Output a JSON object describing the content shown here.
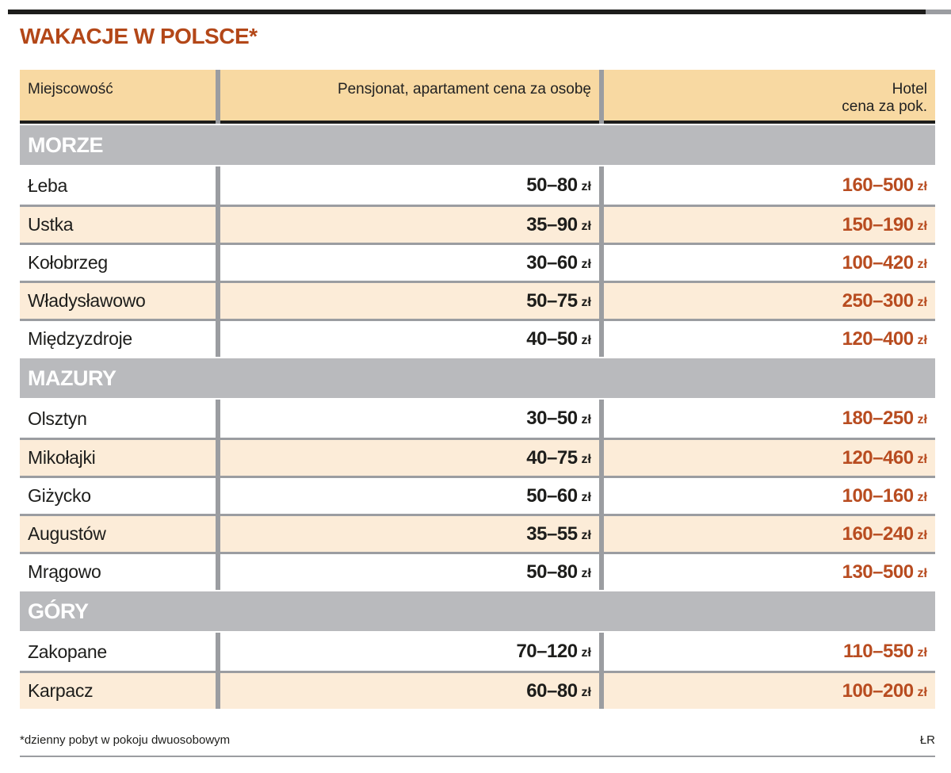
{
  "title": "WAKACJE W POLSCE*",
  "unit": "zł",
  "header": {
    "col1": "Miejscowość",
    "col2": "Pensjonat, apartament cena za osobę",
    "col3_line1": "Hotel",
    "col3_line2": "cena za pok."
  },
  "chart_data": {
    "type": "table",
    "title": "WAKACJE W POLSCE*",
    "columns": [
      "Miejscowość",
      "Pensjonat, apartament cena za osobę (zł)",
      "Hotel cena za pok. (zł)"
    ],
    "unit": "zł",
    "sections": [
      {
        "name": "MORZE",
        "rows": [
          {
            "place": "Łeba",
            "pension": "50–80",
            "hotel": "160–500"
          },
          {
            "place": "Ustka",
            "pension": "35–90",
            "hotel": "150–190"
          },
          {
            "place": "Kołobrzeg",
            "pension": "30–60",
            "hotel": "100–420"
          },
          {
            "place": "Władysławowo",
            "pension": "50–75",
            "hotel": "250–300"
          },
          {
            "place": "Międzyzdroje",
            "pension": "40–50",
            "hotel": "120–400"
          }
        ]
      },
      {
        "name": "MAZURY",
        "rows": [
          {
            "place": "Olsztyn",
            "pension": "30–50",
            "hotel": "180–250"
          },
          {
            "place": "Mikołajki",
            "pension": "40–75",
            "hotel": "120–460"
          },
          {
            "place": "Giżycko",
            "pension": "50–60",
            "hotel": "100–160"
          },
          {
            "place": "Augustów",
            "pension": "35–55",
            "hotel": "160–240"
          },
          {
            "place": "Mrągowo",
            "pension": "50–80",
            "hotel": "130–500"
          }
        ]
      },
      {
        "name": "GÓRY",
        "rows": [
          {
            "place": "Zakopane",
            "pension": "70–120",
            "hotel": "110–550"
          },
          {
            "place": "Karpacz",
            "pension": "60–80",
            "hotel": "100–200"
          }
        ]
      }
    ]
  },
  "footer": {
    "note": "*dzienny pobyt w pokoju dwuosobowym",
    "credit": "ŁR"
  },
  "colors": {
    "title": "#b34718",
    "hotel_value": "#b84c20",
    "header_bg": "#f8d9a2",
    "row_alt_bg": "#fcecd8",
    "section_bg": "#b9babd",
    "divider": "#9b9da1",
    "top_bar": "#1d1d1b"
  }
}
